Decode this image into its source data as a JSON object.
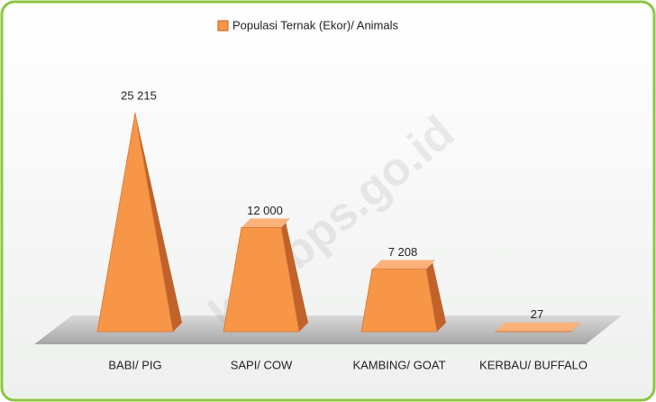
{
  "chart_data": {
    "type": "pyramid",
    "legend_label": "Populasi Ternak (Ekor)/ Animals",
    "categories": [
      "BABI/ PIG",
      "SAPI/ COW",
      "KAMBING/ GOAT",
      "KERBAU/ BUFFALO"
    ],
    "values": [
      25215,
      12000,
      7208,
      27
    ],
    "value_labels": [
      "25 215",
      "12 000",
      "7 208",
      "27"
    ],
    "color": "#f79646",
    "watermark": "kab.bps.go.id"
  }
}
